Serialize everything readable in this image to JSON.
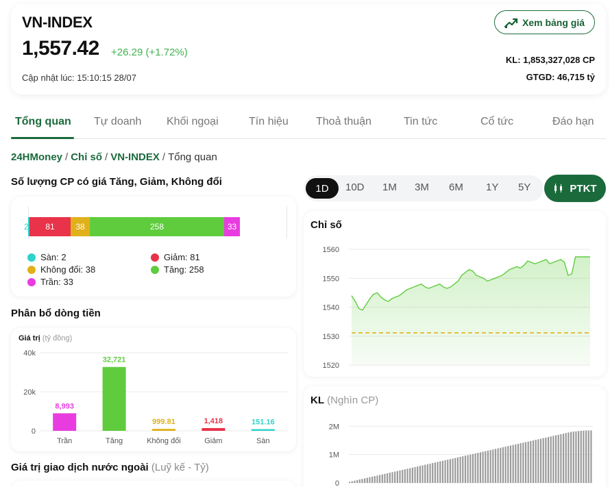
{
  "header": {
    "title": "VN-INDEX",
    "price": "1,557.42",
    "change": "+26.29 (+1.72%)",
    "updated": "Cập nhật lúc: 15:10:15 28/07",
    "board_button": "Xem bảng giá",
    "kl": "KL: 1,853,327,028 CP",
    "gtgd": "GTGD: 46,715 tỷ",
    "accent_color": "#1b6a3c",
    "up_color": "#3fb34f"
  },
  "tabs": [
    "Tổng quan",
    "Tự doanh",
    "Khối ngoại",
    "Tín hiệu",
    "Thoả thuận",
    "Tin tức",
    "Cổ tức",
    "Đáo hạn"
  ],
  "breadcrumb": {
    "items": [
      "24HMoney",
      "Chỉ số",
      "VN-INDEX"
    ],
    "current": "Tổng quan",
    "separator": "/"
  },
  "breadth": {
    "title": "Số lượng CP có giá Tăng, Giảm, Không đổi",
    "segments": [
      {
        "label": "2",
        "value": 2,
        "color": "#2ed3c9"
      },
      {
        "label": "81",
        "value": 81,
        "color": "#e8334a"
      },
      {
        "label": "38",
        "value": 38,
        "color": "#e0b11a"
      },
      {
        "label": "258",
        "value": 258,
        "color": "#5fcc3e"
      },
      {
        "label": "33",
        "value": 33,
        "color": "#e83ce0"
      }
    ],
    "legend": [
      {
        "text": "Sàn: 2",
        "color": "#2ed3c9"
      },
      {
        "text": "Giảm: 81",
        "color": "#e8334a"
      },
      {
        "text": "Không đổi: 38",
        "color": "#e0b11a"
      },
      {
        "text": "Tăng: 258",
        "color": "#5fcc3e"
      },
      {
        "text": "Trần: 33",
        "color": "#e83ce0"
      }
    ]
  },
  "flow": {
    "title": "Phân bổ dòng tiền",
    "axis_title": "Giá trị",
    "axis_unit": "(tỷ đồng)"
  },
  "foreign": {
    "title": "Giá trị giao dịch nước ngoài",
    "subtitle": "(Luỹ kế - Tỷ)"
  },
  "ranges": [
    "1D",
    "10D",
    "1M",
    "3M",
    "6M",
    "1Y",
    "5Y"
  ],
  "ptkt_label": "PTKT",
  "index_card": {
    "title": "Chỉ số"
  },
  "volume_card": {
    "title": "KL",
    "subtitle": "(Nghìn CP)"
  },
  "chart_data": [
    {
      "type": "bar",
      "title": "",
      "ylabel": "Giá trị (tỷ đồng)",
      "categories": [
        "Trần",
        "Tăng",
        "Không đổi",
        "Giảm",
        "Sàn"
      ],
      "values": [
        8993,
        32721,
        999.81,
        1418,
        151.16
      ],
      "value_labels": [
        "8,993",
        "32,721",
        "999.81",
        "1,418",
        "151.16"
      ],
      "colors": [
        "#e83ce0",
        "#5fcc3e",
        "#e0b11a",
        "#e8334a",
        "#2ed3c9"
      ],
      "yticks": [
        "0",
        "20k",
        "40k"
      ],
      "ylim": [
        0,
        40000
      ],
      "grid": true
    },
    {
      "type": "area",
      "title": "Chỉ số",
      "ylim": [
        1520,
        1560
      ],
      "yticks": [
        "1520",
        "1530",
        "1540",
        "1550",
        "1560"
      ],
      "reference_value": 1531.13,
      "values": [
        1544,
        1542,
        1539.5,
        1539,
        1541,
        1543,
        1544.5,
        1545,
        1543.5,
        1542.5,
        1542,
        1543,
        1543.5,
        1544,
        1545,
        1546,
        1546.5,
        1547,
        1547.5,
        1548,
        1547,
        1546.5,
        1547,
        1547.5,
        1548,
        1547,
        1546.5,
        1547,
        1548,
        1549,
        1551,
        1552,
        1553,
        1552.5,
        1551,
        1550.5,
        1550,
        1549,
        1549.5,
        1550,
        1550.5,
        1551,
        1552,
        1553,
        1553.5,
        1554,
        1553.5,
        1554.5,
        1556,
        1555.5,
        1555,
        1555.5,
        1556,
        1556.5,
        1555,
        1555.5,
        1556,
        1556.5,
        1555.5,
        1551,
        1551.5,
        1557.4,
        1557.4,
        1557.4,
        1557.4,
        1557.4
      ],
      "grid": true
    },
    {
      "type": "bar",
      "title": "KL",
      "ylabel": "(Nghìn CP)",
      "yticks": [
        "0",
        "1M",
        "2M"
      ],
      "ylim": [
        0,
        2200000
      ],
      "values": [
        40000,
        60000,
        80000,
        100000,
        120000,
        140000,
        160000,
        180000,
        200000,
        220000,
        240000,
        260000,
        280000,
        300000,
        320000,
        340000,
        360000,
        380000,
        400000,
        420000,
        440000,
        460000,
        480000,
        500000,
        520000,
        540000,
        560000,
        580000,
        600000,
        620000,
        640000,
        660000,
        680000,
        700000,
        720000,
        740000,
        760000,
        780000,
        800000,
        820000,
        840000,
        860000,
        880000,
        900000,
        920000,
        940000,
        960000,
        980000,
        1000000,
        1020000,
        1040000,
        1060000,
        1080000,
        1100000,
        1120000,
        1140000,
        1160000,
        1180000,
        1200000,
        1220000,
        1240000,
        1260000,
        1280000,
        1300000,
        1320000,
        1340000,
        1360000,
        1380000,
        1400000,
        1420000,
        1440000,
        1460000,
        1480000,
        1500000,
        1520000,
        1540000,
        1560000,
        1580000,
        1600000,
        1620000,
        1640000,
        1660000,
        1680000,
        1700000,
        1720000,
        1740000,
        1760000,
        1780000,
        1800000,
        1810000,
        1820000,
        1830000,
        1840000,
        1845000,
        1850000,
        1853000,
        1853327
      ]
    }
  ]
}
